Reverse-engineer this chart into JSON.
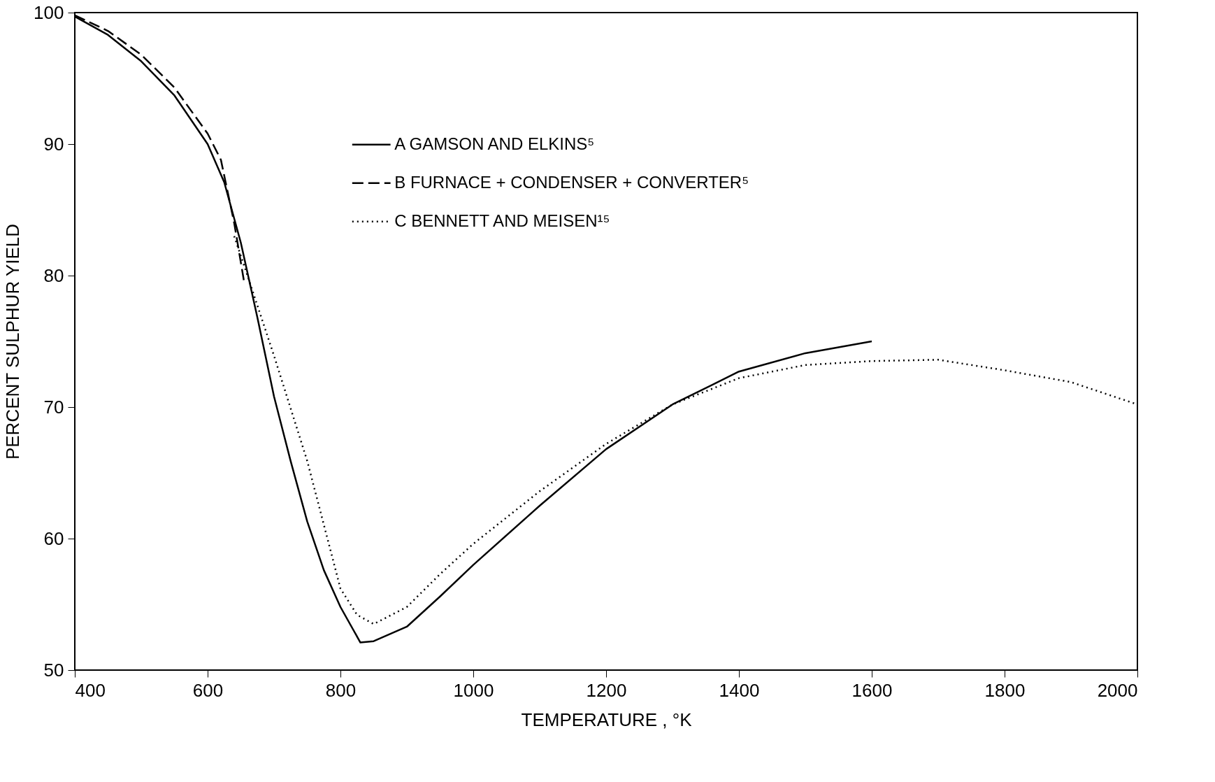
{
  "chart_data": {
    "type": "line",
    "xlabel": "TEMPERATURE , °K",
    "ylabel": "PERCENT SULPHUR YIELD",
    "xlim": [
      400,
      2000
    ],
    "xticks": [
      400,
      600,
      800,
      1000,
      1200,
      1400,
      1600,
      1800,
      2000
    ],
    "ylim": [
      50,
      100
    ],
    "yticks": [
      50,
      60,
      70,
      80,
      90,
      100
    ],
    "grid": false,
    "legend": "top",
    "marker": "none",
    "series": [
      {
        "name": "A GAMSON AND ELKINS⁵",
        "color": "#000000",
        "line_style": "solid",
        "x": [
          400,
          450,
          500,
          550,
          600,
          625,
          650,
          675,
          700,
          725,
          750,
          775,
          800,
          830,
          850,
          900,
          950,
          1000,
          1100,
          1200,
          1300,
          1400,
          1500,
          1600
        ],
        "values": [
          99.7,
          98.3,
          96.3,
          93.7,
          90.0,
          87.1,
          82.5,
          76.8,
          70.8,
          65.9,
          61.3,
          57.6,
          54.8,
          52.1,
          52.2,
          53.3,
          55.6,
          58.0,
          62.5,
          66.8,
          70.2,
          72.7,
          74.1,
          75.0
        ]
      },
      {
        "name": "B FURNACE + CONDENSER + CONVERTER⁵",
        "color": "#000000",
        "line_style": "dashed",
        "x": [
          400,
          450,
          500,
          550,
          600,
          620,
          640,
          655
        ],
        "values": [
          99.8,
          98.6,
          96.8,
          94.3,
          90.8,
          88.8,
          84.0,
          79.5
        ]
      },
      {
        "name": "C BENNETT AND MEISEN¹⁵",
        "color": "#000000",
        "line_style": "dotted",
        "x": [
          640,
          660,
          700,
          750,
          800,
          825,
          850,
          900,
          950,
          1000,
          1100,
          1200,
          1300,
          1400,
          1500,
          1600,
          1700,
          1800,
          1900,
          2000
        ],
        "values": [
          83.0,
          80.0,
          73.9,
          65.9,
          56.2,
          54.2,
          53.5,
          54.8,
          57.3,
          59.6,
          63.6,
          67.2,
          70.2,
          72.2,
          73.2,
          73.5,
          73.6,
          72.8,
          71.9,
          70.2
        ]
      }
    ]
  }
}
